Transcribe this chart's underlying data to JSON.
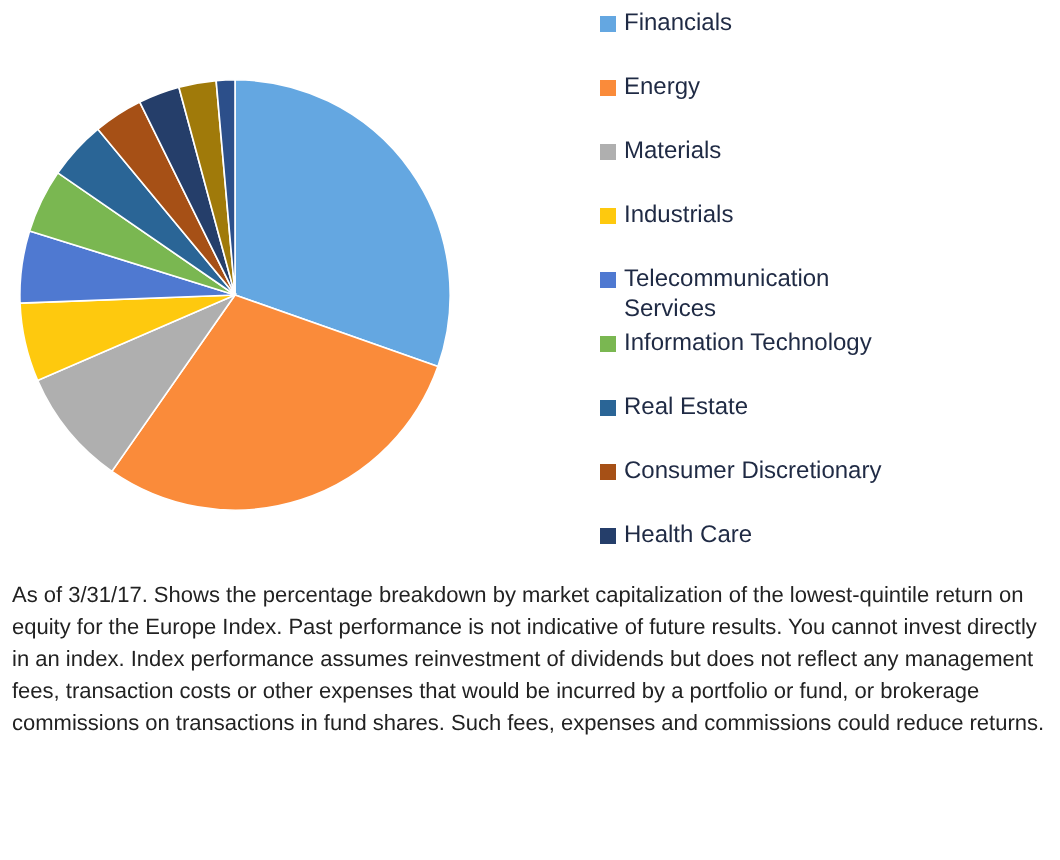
{
  "chart_data": {
    "type": "pie",
    "categories": [
      "Financials",
      "Energy",
      "Materials",
      "Industrials",
      "Telecommunication Services",
      "Information Technology",
      "Real Estate",
      "Consumer Discretionary",
      "Health Care",
      null,
      null
    ],
    "values": [
      30.4,
      29.3,
      8.8,
      5.9,
      5.4,
      4.8,
      4.4,
      3.7,
      3.1,
      2.8,
      1.4
    ],
    "colors": [
      "#64a7e1",
      "#fa8b3a",
      "#afafaf",
      "#fec90e",
      "#4f79d1",
      "#7ab751",
      "#2a6596",
      "#a65016",
      "#253e6a",
      "#a07a0a",
      "#2c4f8a"
    ],
    "legend": "right",
    "annotations": [
      "As of 3/31/17. Shows the percentage breakdown by market capitalization of the lowest-quintile return on equity for the Europe Index. Past performance is not indicative of future results. You cannot invest directly in an index. Index performance assumes reinvestment of dividends but does not reflect any management fees, transaction costs or other expenses that would be incurred by a portfolio or fund, or brokerage commissions on transactions in fund shares. Such fees, expenses and commissions could reduce returns."
    ]
  }
}
